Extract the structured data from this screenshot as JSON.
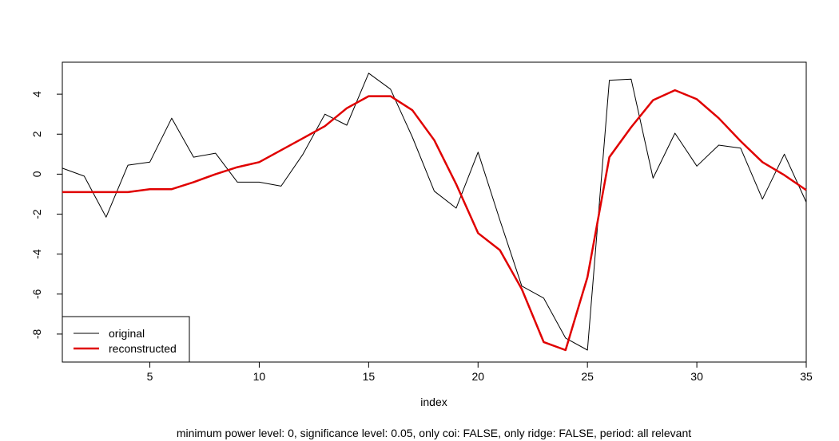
{
  "chart_data": {
    "type": "line",
    "xlabel": "index",
    "ylabel": "",
    "xlim": [
      1,
      35
    ],
    "ylim": [
      -9.4,
      5.6
    ],
    "xticks": [
      5,
      10,
      15,
      20,
      25,
      30,
      35
    ],
    "yticks": [
      -8,
      -6,
      -4,
      -2,
      0,
      2,
      4
    ],
    "legend_position": "bottom-left",
    "x": [
      1,
      2,
      3,
      4,
      5,
      6,
      7,
      8,
      9,
      10,
      11,
      12,
      13,
      14,
      15,
      16,
      17,
      18,
      19,
      20,
      21,
      22,
      23,
      24,
      25,
      26,
      27,
      28,
      29,
      30,
      31,
      32,
      33,
      34,
      35
    ],
    "series": [
      {
        "name": "original",
        "color": "#000000",
        "width": 1,
        "values": [
          0.3,
          -0.1,
          -2.15,
          0.45,
          0.6,
          2.8,
          0.85,
          1.05,
          -0.4,
          -0.4,
          -0.6,
          1.0,
          3.0,
          2.45,
          5.05,
          4.25,
          1.85,
          -0.85,
          -1.7,
          1.1,
          -2.3,
          -5.6,
          -6.2,
          -8.2,
          -8.8,
          4.7,
          4.75,
          -0.2,
          2.05,
          0.4,
          1.45,
          1.3,
          -1.25,
          1.0,
          -1.4
        ]
      },
      {
        "name": "reconstructed",
        "color": "#e00000",
        "width": 2.5,
        "values": [
          -0.9,
          -0.9,
          -0.9,
          -0.9,
          -0.75,
          -0.75,
          -0.4,
          0.0,
          0.35,
          0.6,
          1.2,
          1.8,
          2.4,
          3.3,
          3.9,
          3.9,
          3.2,
          1.7,
          -0.5,
          -2.95,
          -3.8,
          -5.75,
          -8.4,
          -8.8,
          -5.15,
          0.85,
          2.35,
          3.7,
          4.2,
          3.75,
          2.8,
          1.65,
          0.6,
          -0.05,
          -0.8
        ]
      }
    ],
    "caption": "minimum power level: 0, significance level: 0.05, only coi: FALSE, only ridge: FALSE, period: all relevant"
  }
}
